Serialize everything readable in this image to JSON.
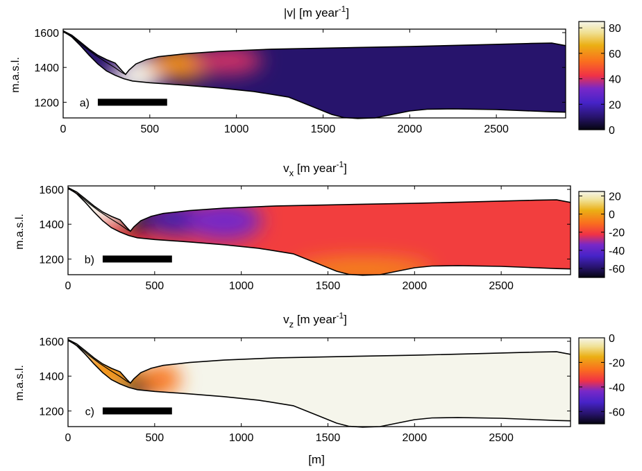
{
  "figure": {
    "xlabel": "[m]",
    "ylabel": "m.a.s.l."
  },
  "chart_data": [
    {
      "type": "heatmap",
      "panel_label": "a)",
      "title_main": "|v| [m year",
      "title_exp": "-1",
      "title_end": "]",
      "ylabel": "m.a.s.l.",
      "xlim": [
        0,
        2900
      ],
      "ylim": [
        1110,
        1620
      ],
      "xticks": [
        0,
        500,
        1000,
        1500,
        2000,
        2500
      ],
      "yticks": [
        1200,
        1400,
        1600
      ],
      "colorbar": {
        "min": 0,
        "max": 85,
        "ticks": [
          0,
          20,
          40,
          60,
          80
        ],
        "colormap": "black-blue-red-yellow-white"
      },
      "scale_bar": [
        200,
        600
      ],
      "scale_bar_y": 1200
    },
    {
      "type": "heatmap",
      "panel_label": "b)",
      "title_main": "v",
      "title_sub": "x",
      "title_exp": "-1",
      "title_end": " [m year",
      "ylabel": "m.a.s.l.",
      "xlim": [
        0,
        2900
      ],
      "ylim": [
        1110,
        1620
      ],
      "xticks": [
        0,
        500,
        1000,
        1500,
        2000,
        2500
      ],
      "yticks": [
        1200,
        1400,
        1600
      ],
      "colorbar": {
        "min": -70,
        "max": 25,
        "ticks": [
          20,
          0,
          -20,
          -40,
          -60
        ],
        "colormap": "black-blue-red-yellow-white"
      },
      "scale_bar": [
        200,
        600
      ],
      "scale_bar_y": 1200
    },
    {
      "type": "heatmap",
      "panel_label": "c)",
      "title_main": "v",
      "title_sub": "z",
      "title_exp": "-1",
      "title_end": " [m year",
      "ylabel": "m.a.s.l.",
      "xlim": [
        0,
        2900
      ],
      "ylim": [
        1110,
        1620
      ],
      "xticks": [
        0,
        500,
        1000,
        1500,
        2000,
        2500
      ],
      "yticks": [
        1200,
        1400,
        1600
      ],
      "colorbar": {
        "min": -70,
        "max": 0,
        "ticks": [
          0,
          -20,
          -40,
          -60
        ],
        "colormap": "black-blue-red-yellow-white"
      },
      "scale_bar": [
        200,
        600
      ],
      "scale_bar_y": 1200
    }
  ],
  "glacier": {
    "surface": [
      [
        0,
        1610
      ],
      [
        50,
        1585
      ],
      [
        100,
        1545
      ],
      [
        150,
        1505
      ],
      [
        200,
        1470
      ],
      [
        250,
        1445
      ],
      [
        300,
        1425
      ],
      [
        340,
        1380
      ],
      [
        360,
        1360
      ],
      [
        380,
        1385
      ],
      [
        420,
        1420
      ],
      [
        480,
        1445
      ],
      [
        550,
        1462
      ],
      [
        700,
        1478
      ],
      [
        900,
        1492
      ],
      [
        1200,
        1505
      ],
      [
        1600,
        1513
      ],
      [
        2000,
        1520
      ],
      [
        2400,
        1530
      ],
      [
        2700,
        1538
      ],
      [
        2820,
        1540
      ],
      [
        2900,
        1525
      ]
    ],
    "bed": [
      [
        0,
        1610
      ],
      [
        50,
        1575
      ],
      [
        100,
        1525
      ],
      [
        150,
        1470
      ],
      [
        200,
        1420
      ],
      [
        250,
        1380
      ],
      [
        300,
        1355
      ],
      [
        350,
        1335
      ],
      [
        400,
        1322
      ],
      [
        500,
        1312
      ],
      [
        700,
        1298
      ],
      [
        900,
        1282
      ],
      [
        1100,
        1262
      ],
      [
        1300,
        1230
      ],
      [
        1450,
        1170
      ],
      [
        1550,
        1130
      ],
      [
        1620,
        1112
      ],
      [
        1700,
        1107
      ],
      [
        1800,
        1110
      ],
      [
        1900,
        1130
      ],
      [
        2000,
        1150
      ],
      [
        2100,
        1160
      ],
      [
        2250,
        1162
      ],
      [
        2500,
        1158
      ],
      [
        2700,
        1150
      ],
      [
        2820,
        1145
      ],
      [
        2900,
        1143
      ]
    ],
    "overlap_surface": [
      [
        0,
        1605
      ],
      [
        60,
        1570
      ],
      [
        120,
        1520
      ],
      [
        180,
        1475
      ],
      [
        240,
        1435
      ],
      [
        300,
        1398
      ],
      [
        340,
        1370
      ],
      [
        360,
        1360
      ]
    ],
    "overlap_bed": [
      [
        0,
        1605
      ],
      [
        60,
        1565
      ],
      [
        120,
        1505
      ],
      [
        180,
        1450
      ],
      [
        240,
        1405
      ],
      [
        300,
        1370
      ],
      [
        360,
        1360
      ]
    ]
  },
  "fields": {
    "v_mag": {
      "base": 10,
      "blobs": [
        {
          "cx": 0,
          "cy": 1600,
          "rx": 180,
          "ry": 140,
          "value": 10
        },
        {
          "cx": 420,
          "cy": 1360,
          "rx": 160,
          "ry": 110,
          "value": 85
        },
        {
          "cx": 680,
          "cy": 1420,
          "rx": 200,
          "ry": 90,
          "value": 60
        },
        {
          "cx": 950,
          "cy": 1440,
          "rx": 200,
          "ry": 80,
          "value": 40
        },
        {
          "cx": 320,
          "cy": 1400,
          "rx": 60,
          "ry": 40,
          "value": 35
        }
      ]
    },
    "v_x": {
      "base": -20,
      "blobs": [
        {
          "cx": 150,
          "cy": 1520,
          "rx": 220,
          "ry": 130,
          "value": 25
        },
        {
          "cx": 430,
          "cy": 1430,
          "rx": 140,
          "ry": 70,
          "value": -70
        },
        {
          "cx": 650,
          "cy": 1430,
          "rx": 200,
          "ry": 90,
          "value": -50
        },
        {
          "cx": 900,
          "cy": 1420,
          "rx": 220,
          "ry": 110,
          "value": -35
        },
        {
          "cx": 1700,
          "cy": 1140,
          "rx": 400,
          "ry": 70,
          "value": -5
        }
      ]
    },
    "v_z": {
      "base": 0,
      "blobs": [
        {
          "cx": 220,
          "cy": 1430,
          "rx": 200,
          "ry": 110,
          "value": -20
        },
        {
          "cx": 420,
          "cy": 1335,
          "rx": 110,
          "ry": 70,
          "value": -70
        },
        {
          "cx": 540,
          "cy": 1380,
          "rx": 110,
          "ry": 90,
          "value": -25
        }
      ]
    }
  }
}
